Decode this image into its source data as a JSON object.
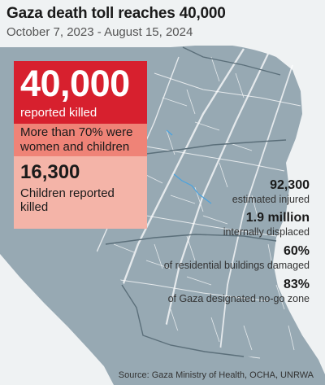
{
  "header": {
    "title": "Gaza death toll reaches 40,000",
    "subtitle": "October 7, 2023 - August 15, 2024"
  },
  "colors": {
    "background": "#eff2f3",
    "land": "#97a9b3",
    "roads": "#ffffff",
    "accent_red": "#d7202e",
    "salmon": "#ef8377",
    "pink": "#f4b4a8"
  },
  "main_panel": {
    "deaths_value": "40,000",
    "deaths_label": "reported killed",
    "share_note": "More than 70% were women and children",
    "children_value": "16,300",
    "children_label": "Children reported killed"
  },
  "stats": [
    {
      "value": "92,300",
      "label": "estimated injured"
    },
    {
      "value": "1.9 million",
      "label": "internally displaced"
    },
    {
      "value": "60%",
      "label": "of residential buildings damaged"
    },
    {
      "value": "83%",
      "label": "of Gaza designated no-go zone"
    }
  ],
  "source": "Source: Gaza Ministry of Health, OCHA, UNRWA"
}
